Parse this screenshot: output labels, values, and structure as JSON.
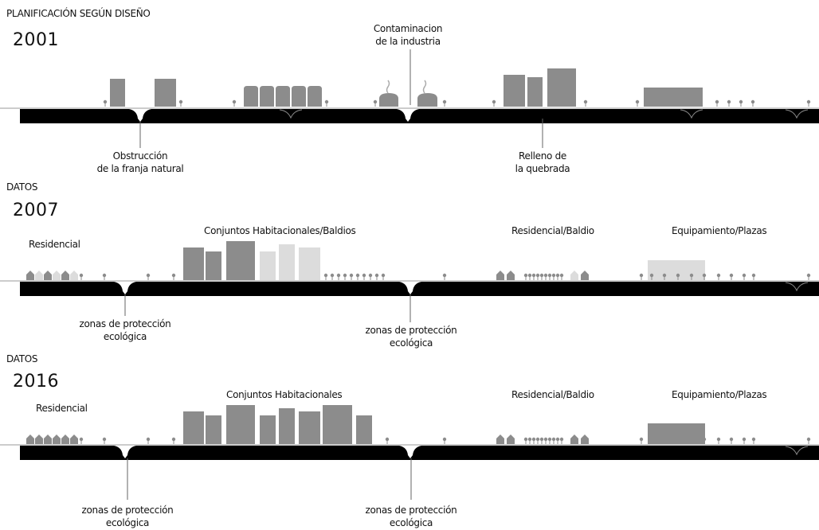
{
  "sections": [
    {
      "header": "PLANIFICACIÓN SEGÚN DISEÑO",
      "year": "2001",
      "labels": {
        "contaminacion": [
          "Contaminacion",
          "de la industria"
        ],
        "obstruccion": [
          "Obstrucción",
          "de la franja natural"
        ],
        "relleno": [
          "Relleno de",
          "la quebrada"
        ]
      }
    },
    {
      "header": "DATOS",
      "year": "2007",
      "labels": {
        "residencial": "Residencial",
        "conjuntos": "Conjuntos Habitacionales/Baldios",
        "residencial_baldio": "Residencial/Baldio",
        "equipamiento": "Equipamiento/Plazas",
        "zona1": [
          "zonas de protección",
          "ecológica"
        ],
        "zona2": [
          "zonas de protección",
          "ecológica"
        ]
      }
    },
    {
      "header": "DATOS",
      "year": "2016",
      "labels": {
        "residencial": "Residencial",
        "conjuntos": "Conjuntos Habitacionales",
        "residencial_baldio": "Residencial/Baldio",
        "equipamiento": "Equipamiento/Plazas",
        "zona1": [
          "zonas de protección",
          "ecológica"
        ],
        "zona2": [
          "zonas de protección",
          "ecológica"
        ]
      }
    }
  ],
  "colors": {
    "ground": "#000000",
    "building": "#8c8c8c",
    "building_light": "#dcdcdc",
    "tree": "#8c8c8c",
    "line": "#666666"
  }
}
